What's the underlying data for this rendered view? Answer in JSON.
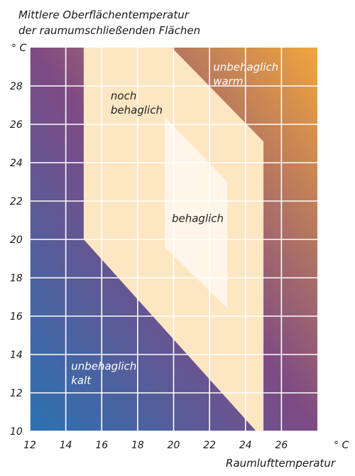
{
  "chart_data": {
    "type": "area",
    "title": "Mittlere Oberflächentemperatur",
    "subtitle": "der raumumschließenden Flächen",
    "xlabel": "Raumlufttemperatur",
    "x_unit": "° C",
    "y_unit": "° C",
    "xlim": [
      12,
      28
    ],
    "ylim": [
      10,
      30
    ],
    "x_ticks": [
      12,
      14,
      16,
      18,
      20,
      22,
      24,
      26
    ],
    "y_ticks": [
      10,
      12,
      14,
      16,
      18,
      20,
      22,
      24,
      26,
      28
    ],
    "grid": true,
    "zones": [
      {
        "name": "noch behaglich",
        "lines": [
          "noch",
          "behaglich"
        ],
        "polygon": [
          [
            15,
            30
          ],
          [
            19.9,
            30
          ],
          [
            25,
            25.1
          ],
          [
            25,
            10
          ],
          [
            24.6,
            10
          ],
          [
            15,
            20
          ]
        ],
        "label_at": [
          16.5,
          27.3
        ],
        "color": "#fde6c2",
        "text_color": "#222222"
      },
      {
        "name": "behaglich",
        "lines": [
          "behaglich"
        ],
        "polygon": [
          [
            19.5,
            26.4
          ],
          [
            23,
            23
          ],
          [
            23,
            16.4
          ],
          [
            19.5,
            19.6
          ]
        ],
        "label_at": [
          19.9,
          20.9
        ],
        "color": "#fff5e8",
        "text_color": "#222222"
      },
      {
        "name": "unbehaglich warm",
        "lines": [
          "unbehaglich",
          "warm"
        ],
        "label_at": [
          22.2,
          28.8
        ],
        "text_color": "#ffffff"
      },
      {
        "name": "unbehaglich kalt",
        "lines": [
          "unbehaglich",
          "kalt"
        ],
        "label_at": [
          14.3,
          13.2
        ],
        "text_color": "#ffffff"
      }
    ],
    "colors": {
      "bottom_left": "#2a72b2",
      "middle": "#7d4a84",
      "top_right": "#f1a53b",
      "grid": "#ffffff"
    }
  }
}
